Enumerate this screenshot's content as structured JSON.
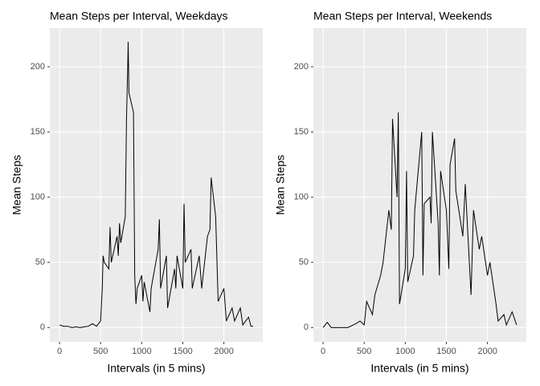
{
  "chart_data": [
    {
      "type": "line",
      "title": "Mean Steps per Interval, Weekdays",
      "x_label": "Intervals (in 5 mins)",
      "y_label": "Mean Steps",
      "x": [
        0,
        50,
        100,
        150,
        200,
        250,
        300,
        350,
        400,
        450,
        500,
        520,
        530,
        545,
        600,
        615,
        630,
        700,
        715,
        730,
        745,
        800,
        815,
        830,
        835,
        845,
        900,
        915,
        930,
        945,
        1000,
        1015,
        1030,
        1100,
        1115,
        1200,
        1215,
        1230,
        1300,
        1315,
        1400,
        1415,
        1430,
        1500,
        1515,
        1530,
        1600,
        1615,
        1700,
        1730,
        1800,
        1830,
        1845,
        1900,
        1930,
        2000,
        2030,
        2100,
        2130,
        2200,
        2230,
        2300,
        2330,
        2355
      ],
      "values": [
        2,
        1,
        1,
        0,
        0.5,
        0,
        0.5,
        1,
        3,
        1,
        5,
        30,
        55,
        50,
        45,
        77,
        50,
        70,
        55,
        80,
        65,
        85,
        160,
        200,
        219,
        180,
        165,
        40,
        18,
        30,
        40,
        20,
        35,
        12,
        30,
        60,
        83,
        30,
        55,
        15,
        45,
        30,
        55,
        30,
        95,
        50,
        60,
        30,
        55,
        30,
        70,
        75,
        115,
        85,
        20,
        30,
        5,
        15,
        5,
        15,
        2,
        8,
        1,
        1
      ],
      "color": "#000000",
      "xlim": [
        -118,
        2473
      ],
      "ylim": [
        -10.9,
        229.6
      ],
      "xticks": [
        0,
        500,
        1000,
        1500,
        2000
      ],
      "yticks": [
        0,
        50,
        100,
        150,
        200
      ],
      "grid": true
    },
    {
      "type": "line",
      "title": "Mean Steps per Interval, Weekends",
      "x_label": "Intervals (in 5 mins)",
      "y_label": "Mean Steps",
      "x": [
        0,
        50,
        100,
        200,
        300,
        400,
        450,
        500,
        530,
        600,
        630,
        700,
        730,
        800,
        830,
        845,
        900,
        915,
        930,
        1000,
        1015,
        1030,
        1100,
        1115,
        1200,
        1215,
        1230,
        1300,
        1315,
        1330,
        1400,
        1415,
        1430,
        1500,
        1530,
        1545,
        1600,
        1615,
        1700,
        1730,
        1800,
        1830,
        1900,
        1930,
        2000,
        2030,
        2100,
        2130,
        2200,
        2230,
        2300,
        2355
      ],
      "values": [
        0,
        4,
        0,
        0,
        0,
        3,
        5,
        2,
        20,
        10,
        25,
        40,
        50,
        90,
        75,
        160,
        100,
        165,
        18,
        45,
        120,
        35,
        55,
        90,
        150,
        40,
        95,
        100,
        80,
        150,
        80,
        40,
        120,
        90,
        45,
        125,
        145,
        105,
        70,
        110,
        25,
        90,
        60,
        70,
        40,
        50,
        20,
        5,
        10,
        2,
        12,
        2
      ],
      "color": "#000000",
      "xlim": [
        -118,
        2473
      ],
      "ylim": [
        -10.9,
        229.6
      ],
      "xticks": [
        0,
        500,
        1000,
        1500,
        2000
      ],
      "yticks": [
        0,
        50,
        100,
        150,
        200
      ],
      "grid": true
    }
  ]
}
